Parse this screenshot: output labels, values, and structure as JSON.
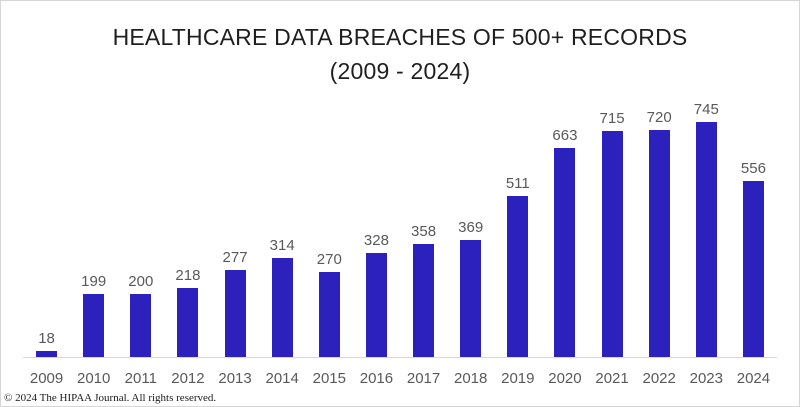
{
  "chart_data": {
    "type": "bar",
    "title_line1": "HEALTHCARE DATA BREACHES OF 500+ RECORDS",
    "title_line2": "(2009 - 2024)",
    "categories": [
      "2009",
      "2010",
      "2011",
      "2012",
      "2013",
      "2014",
      "2015",
      "2016",
      "2017",
      "2018",
      "2019",
      "2020",
      "2021",
      "2022",
      "2023",
      "2024"
    ],
    "values": [
      18,
      199,
      200,
      218,
      277,
      314,
      270,
      328,
      358,
      369,
      511,
      663,
      715,
      720,
      745,
      556
    ],
    "xlabel": "",
    "ylabel": "",
    "ylim": [
      0,
      760
    ],
    "grid": false,
    "legend": false,
    "data_labels": true,
    "bar_color": "#2D21BE",
    "axis_color": "#D9D9D9",
    "label_color": "#595959",
    "title_color": "#1F1F1F"
  },
  "footer": {
    "copyright": "© 2024 The HIPAA Journal. All rights reserved."
  }
}
